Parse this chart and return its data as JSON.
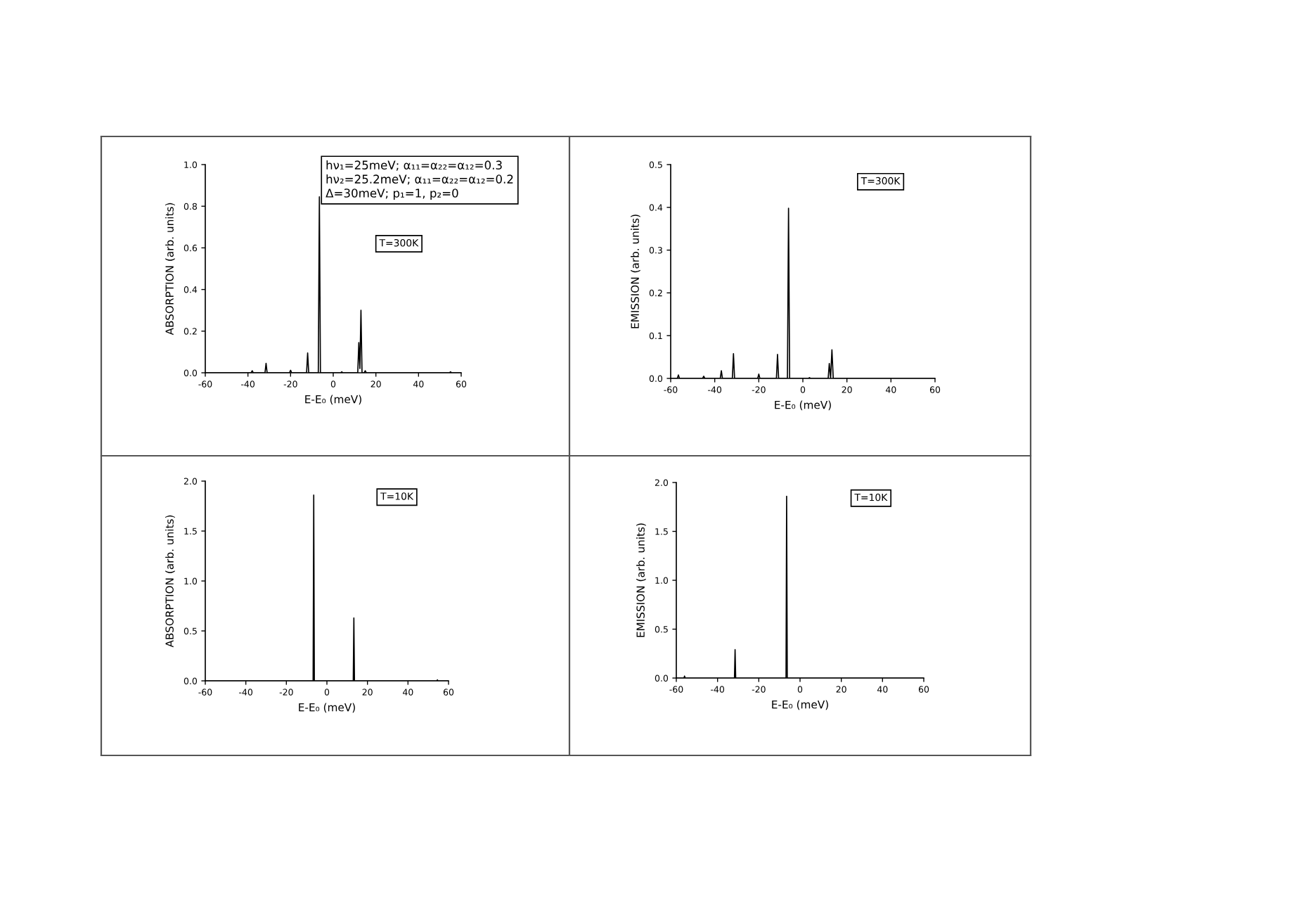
{
  "chart_data": [
    {
      "type": "line",
      "xlabel": "E-E₀ (meV)",
      "ylabel": "ABSORPTION (arb. units)",
      "annotations": [
        "hν₁=25meV; α₁₁=α₂₂=α₁₂=0.3\nhν₂=25.2meV; α₁₁=α₂₂=α₁₂=0.2\nΔ=30meV; p₁=1, p₂=0",
        "T=300K"
      ],
      "xlim": [
        -60,
        60
      ],
      "ylim": [
        0,
        1.0
      ],
      "xticks": [
        -60,
        -40,
        -20,
        0,
        20,
        40,
        60
      ],
      "yticks": [
        {
          "value": 0,
          "label": "0.0"
        },
        {
          "value": 0.2,
          "label": "0.2"
        },
        {
          "value": 0.4,
          "label": "0.4"
        },
        {
          "value": 0.6,
          "label": "0.6"
        },
        {
          "value": 0.8,
          "label": "0.8"
        },
        {
          "value": 1.0,
          "label": "1.0"
        }
      ],
      "series": [
        {
          "color": "#000000",
          "x": [
            -60,
            -38.5,
            -38,
            -37.5,
            -32,
            -31.5,
            -31,
            -20.5,
            -20,
            -19.5,
            -12.5,
            -12,
            -11.5,
            -7,
            -6.5,
            -6,
            3.5,
            4,
            4.5,
            11.5,
            12,
            12.5,
            13,
            13.5,
            14.5,
            15,
            15.5,
            54.5,
            55,
            55.5,
            60
          ],
          "values": [
            0,
            0,
            0.01,
            0,
            0,
            0.045,
            0,
            0,
            0.012,
            0,
            0,
            0.095,
            0,
            0,
            0.845,
            0,
            0,
            0.005,
            0,
            0,
            0.145,
            0.02,
            0.3,
            0,
            0,
            0.01,
            0,
            0,
            0.005,
            0,
            0
          ]
        }
      ]
    },
    {
      "type": "line",
      "xlabel": "E-E₀ (meV)",
      "ylabel": "EMISSION (arb. units)",
      "annotations": [
        "T=300K"
      ],
      "xlim": [
        -60,
        60
      ],
      "ylim": [
        0,
        0.5
      ],
      "xticks": [
        -60,
        -40,
        -20,
        0,
        20,
        40,
        60
      ],
      "yticks": [
        {
          "value": 0,
          "label": "0.0"
        },
        {
          "value": 0.1,
          "label": "0.1"
        },
        {
          "value": 0.2,
          "label": "0.2"
        },
        {
          "value": 0.3,
          "label": "0.3"
        },
        {
          "value": 0.4,
          "label": "0.4"
        },
        {
          "value": 0.5,
          "label": "0.5"
        }
      ],
      "series": [
        {
          "color": "#000000",
          "x": [
            -60,
            -57,
            -56.5,
            -56,
            -45.5,
            -45,
            -44.5,
            -37.5,
            -37,
            -36.5,
            -32,
            -31.5,
            -31,
            -20.5,
            -20,
            -19.5,
            -12,
            -11.5,
            -11,
            -7,
            -6.5,
            -6,
            2.5,
            3,
            3.5,
            11.5,
            12,
            12.6,
            13.2,
            13.8,
            60
          ],
          "values": [
            0,
            0,
            0.008,
            0,
            0,
            0.005,
            0,
            0,
            0.018,
            0,
            0,
            0.058,
            0,
            0,
            0.01,
            0,
            0,
            0.056,
            0,
            0,
            0.398,
            0,
            0,
            0.002,
            0,
            0,
            0.035,
            0,
            0.067,
            0,
            0
          ]
        }
      ]
    },
    {
      "type": "line",
      "xlabel": "E-E₀ (meV)",
      "ylabel": "ABSORPTION (arb. units)",
      "annotations": [
        "T=10K"
      ],
      "xlim": [
        -60,
        60
      ],
      "ylim": [
        0,
        2.0
      ],
      "xticks": [
        -60,
        -40,
        -20,
        0,
        20,
        40,
        60
      ],
      "yticks": [
        {
          "value": 0,
          "label": "0.0"
        },
        {
          "value": 0.5,
          "label": "0.5"
        },
        {
          "value": 1.0,
          "label": "1.0"
        },
        {
          "value": 1.5,
          "label": "1.5"
        },
        {
          "value": 2.0,
          "label": "2.0"
        }
      ],
      "series": [
        {
          "color": "#000000",
          "x": [
            -60,
            -6.8,
            -6.5,
            -6.2,
            13,
            13.3,
            13.6,
            54.2,
            54.5,
            54.8,
            60
          ],
          "values": [
            0,
            0,
            1.86,
            0,
            0,
            0.63,
            0,
            0,
            0.01,
            0,
            0
          ]
        }
      ]
    },
    {
      "type": "line",
      "xlabel": "E-E₀ (meV)",
      "ylabel": "EMISSION (arb. units)",
      "annotations": [
        "T=10K"
      ],
      "xlim": [
        -60,
        60
      ],
      "ylim": [
        0,
        2.0
      ],
      "xticks": [
        -60,
        -40,
        -20,
        0,
        20,
        40,
        60
      ],
      "yticks": [
        {
          "value": 0,
          "label": "0.0"
        },
        {
          "value": 0.5,
          "label": "0.5"
        },
        {
          "value": 1.0,
          "label": "1.0"
        },
        {
          "value": 1.5,
          "label": "1.5"
        },
        {
          "value": 2.0,
          "label": "2.0"
        }
      ],
      "series": [
        {
          "color": "#000000",
          "x": [
            -60,
            -56.3,
            -56,
            -55.7,
            -31.8,
            -31.5,
            -31.2,
            -6.8,
            -6.5,
            -6.2,
            60
          ],
          "values": [
            0,
            0,
            0.02,
            0,
            0,
            0.29,
            0,
            0,
            1.86,
            0,
            0
          ]
        }
      ]
    }
  ]
}
